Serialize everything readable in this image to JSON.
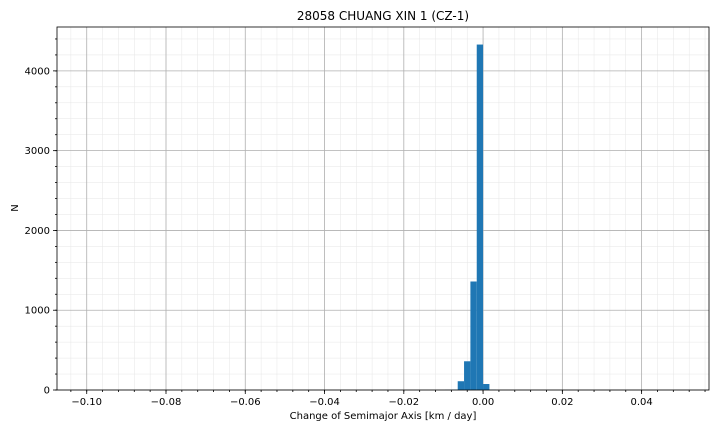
{
  "chart_data": {
    "type": "bar",
    "title": "28058 CHUANG XIN 1 (CZ-1)",
    "xlabel": "Change of Semimajor Axis [km / day]",
    "ylabel": "N",
    "xlim": [
      -0.1075,
      0.057
    ],
    "ylim": [
      0,
      4550
    ],
    "grid": true,
    "x_ticks": [
      -0.1,
      -0.08,
      -0.06,
      -0.04,
      -0.02,
      0.0,
      0.02,
      0.04
    ],
    "x_tick_labels": [
      "−0.10",
      "−0.08",
      "−0.06",
      "−0.04",
      "−0.02",
      "0.00",
      "0.02",
      "0.04"
    ],
    "y_ticks": [
      0,
      1000,
      2000,
      3000,
      4000
    ],
    "y_tick_labels": [
      "0",
      "1000",
      "2000",
      "3000",
      "4000"
    ],
    "bin_width": 0.0016,
    "bins": [
      {
        "x0": -0.0096,
        "count": 2
      },
      {
        "x0": -0.008,
        "count": 4
      },
      {
        "x0": -0.0064,
        "count": 110
      },
      {
        "x0": -0.0048,
        "count": 360
      },
      {
        "x0": -0.0032,
        "count": 1360
      },
      {
        "x0": -0.0016,
        "count": 4330
      },
      {
        "x0": 0.0,
        "count": 75
      },
      {
        "x0": 0.0016,
        "count": 3
      }
    ],
    "bar_color": "#1f77b4"
  }
}
